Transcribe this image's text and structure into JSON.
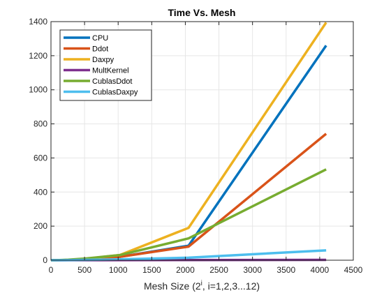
{
  "chart_data": {
    "type": "line",
    "title": "Time Vs. Mesh",
    "xlabel": {
      "prefix": "Mesh Size (2",
      "superscript": "i",
      "suffix": ", i=1,2,3...12)"
    },
    "ylabel": "",
    "xlim": [
      0,
      4500
    ],
    "ylim": [
      0,
      1400
    ],
    "xticks": [
      0,
      500,
      1000,
      1500,
      2000,
      2500,
      3000,
      3500,
      4000,
      4500
    ],
    "yticks": [
      0,
      200,
      400,
      600,
      800,
      1000,
      1200,
      1400
    ],
    "grid": true,
    "legend_location": "top-left",
    "x": [
      2,
      4,
      8,
      16,
      32,
      64,
      128,
      256,
      512,
      1024,
      2048,
      4096
    ],
    "series": [
      {
        "name": "CPU",
        "color": "#0072BD",
        "values": [
          0,
          0,
          0,
          0,
          0,
          0.1,
          0.3,
          1,
          5,
          20,
          85,
          1260
        ]
      },
      {
        "name": "Ddot",
        "color": "#D95319",
        "values": [
          0,
          0,
          0,
          0,
          0,
          0.1,
          0.3,
          1,
          5,
          20,
          80,
          742
        ]
      },
      {
        "name": "Daxpy",
        "color": "#EDB120",
        "values": [
          0,
          0,
          0,
          0,
          0,
          0.1,
          0.5,
          2,
          8,
          30,
          190,
          1395
        ]
      },
      {
        "name": "MultKernel",
        "color": "#7E2F8E",
        "values": [
          0,
          0,
          0,
          0,
          0,
          0,
          0,
          0,
          0.2,
          0.5,
          1,
          2
        ]
      },
      {
        "name": "CublasDdot",
        "color": "#77AC30",
        "values": [
          0,
          0,
          0,
          0,
          0.1,
          0.3,
          1,
          3,
          10,
          30,
          128,
          533
        ]
      },
      {
        "name": "CublasDaxpy",
        "color": "#4DBEEE",
        "values": [
          0,
          0,
          0,
          0,
          0,
          0.1,
          0.2,
          0.5,
          2,
          5,
          15,
          58
        ]
      }
    ]
  }
}
